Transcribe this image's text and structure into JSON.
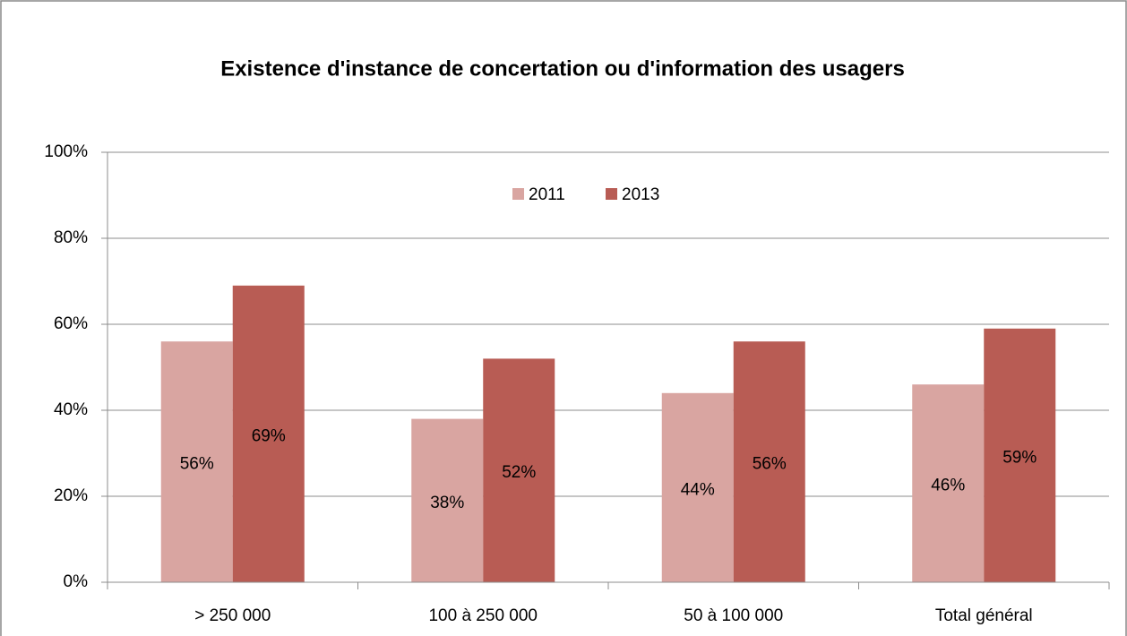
{
  "chart_data": {
    "type": "bar",
    "title": "Existence d'instance de concertation ou d'information des usagers",
    "categories": [
      "> 250 000",
      "100 à 250 000",
      "50 à 100 000",
      "Total général"
    ],
    "series": [
      {
        "name": "2011",
        "color": "#d9a5a1",
        "values": [
          56,
          38,
          44,
          46
        ],
        "value_labels": [
          "56%",
          "38%",
          "44%",
          "46%"
        ]
      },
      {
        "name": "2013",
        "color": "#b85c54",
        "values": [
          69,
          52,
          56,
          59
        ],
        "value_labels": [
          "69%",
          "52%",
          "56%",
          "59%"
        ]
      }
    ],
    "ylim": [
      0,
      100
    ],
    "yticks": [
      {
        "value": 0,
        "label": "0%"
      },
      {
        "value": 20,
        "label": "20%"
      },
      {
        "value": 40,
        "label": "40%"
      },
      {
        "value": 60,
        "label": "60%"
      },
      {
        "value": 80,
        "label": "80%"
      },
      {
        "value": 100,
        "label": "100%"
      }
    ],
    "grid": true,
    "legend": "top"
  }
}
